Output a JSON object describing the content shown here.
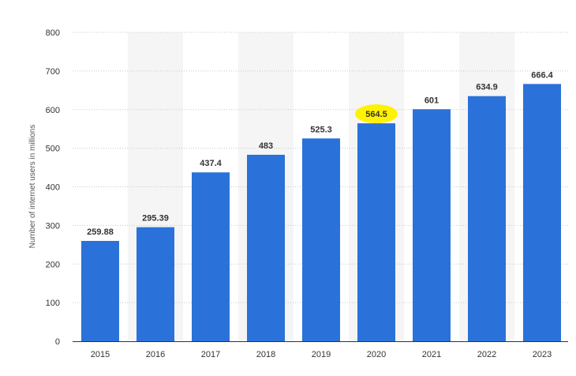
{
  "chart_data": {
    "type": "bar",
    "title": "",
    "xlabel": "",
    "ylabel": "Number of internet users in millions",
    "categories": [
      "2015",
      "2016",
      "2017",
      "2018",
      "2019",
      "2020",
      "2021",
      "2022",
      "2023"
    ],
    "series": [
      {
        "values": [
          259.88,
          295.39,
          437.4,
          483,
          525.3,
          564.5,
          601,
          634.9,
          666.4
        ],
        "labels": [
          "259.88",
          "295.39",
          "437.4",
          "483",
          "525.3",
          "564.5",
          "601",
          "634.9",
          "666.4"
        ]
      }
    ],
    "ylim": [
      0,
      800
    ],
    "yticks": [
      "0",
      "100",
      "200",
      "300",
      "400",
      "500",
      "600",
      "700",
      "800"
    ],
    "grid": true,
    "highlighted_label": "564.5",
    "colors": {
      "bar": "#2a72d9",
      "highlight": "#fff200",
      "alt_band": "#f5f5f5",
      "grid": "#c8c8c8"
    }
  }
}
